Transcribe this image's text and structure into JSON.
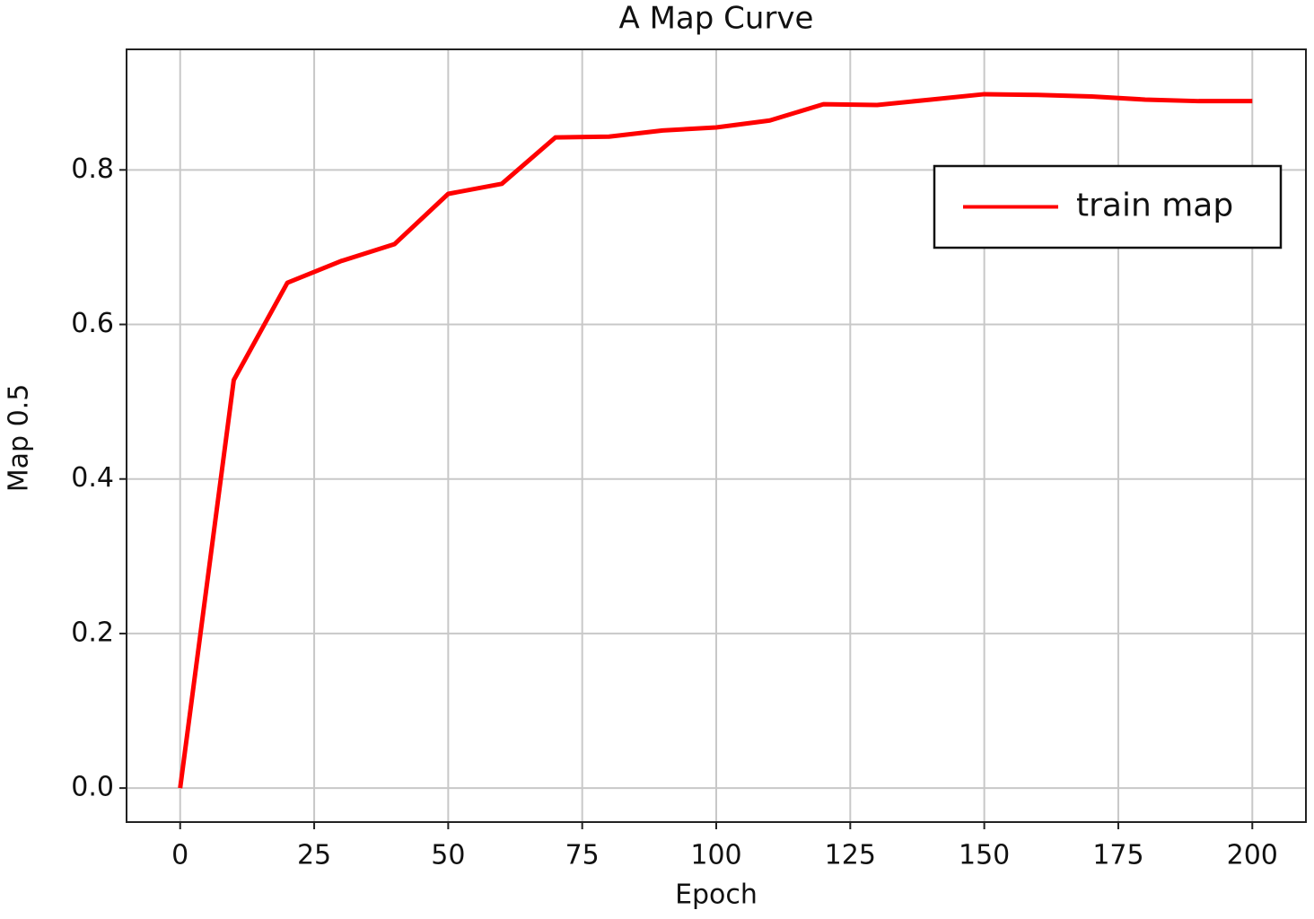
{
  "chart_data": {
    "type": "line",
    "title": "A Map Curve",
    "xlabel": "Epoch",
    "ylabel": "Map 0.5",
    "x": [
      0,
      10,
      20,
      30,
      40,
      50,
      60,
      70,
      80,
      90,
      100,
      110,
      120,
      130,
      140,
      150,
      160,
      170,
      180,
      190,
      200
    ],
    "series": [
      {
        "name": "train map",
        "color": "#ff0000",
        "values": [
          0.0,
          0.528,
          0.654,
          0.682,
          0.704,
          0.769,
          0.782,
          0.842,
          0.843,
          0.851,
          0.855,
          0.864,
          0.885,
          0.884,
          0.891,
          0.898,
          0.897,
          0.895,
          0.891,
          0.889,
          0.889
        ]
      }
    ],
    "xlim": [
      -10,
      210
    ],
    "ylim": [
      -0.044,
      0.956
    ],
    "xticks": [
      0,
      25,
      50,
      75,
      100,
      125,
      150,
      175,
      200
    ],
    "yticks": [
      {
        "value": 0,
        "label": "0.0"
      },
      0.2,
      0.4,
      0.6,
      0.8
    ],
    "grid": true,
    "legend": "upper right"
  }
}
